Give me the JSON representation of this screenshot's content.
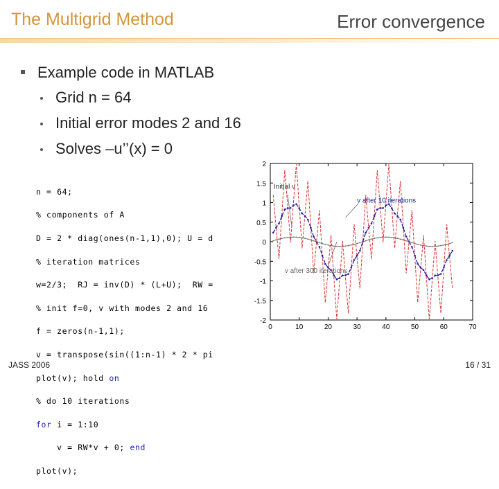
{
  "header": {
    "title": "The Multigrid Method",
    "section": "Error convergence"
  },
  "bullets": {
    "main": "Example code in MATLAB",
    "sub": [
      "Grid n = 64",
      "Initial error modes 2 and 16",
      "Solves –u’’(x) = 0"
    ]
  },
  "code_lines": [
    "n = 64;",
    "% components of A",
    "D = 2 * diag(ones(n-1,1),0); U = d",
    "% iteration matrices",
    "w=2/3;  RJ = inv(D) * (L+U);  RW =",
    "% init f=0, v with modes 2 and 16",
    "f = zeros(n-1,1);",
    "v = transpose(sin((1:n-1) * 2 * pi",
    "plot(v); hold on",
    "% do 10 iterations",
    "for i = 1:10",
    "    v = RW*v + 0; end",
    "plot(v);"
  ],
  "chart_data": {
    "type": "line",
    "xlim": [
      0,
      70
    ],
    "ylim": [
      -2,
      2
    ],
    "xticks": [
      "0",
      "10",
      "20",
      "30",
      "40",
      "50",
      "60",
      "70"
    ],
    "yticks": [
      "2",
      "1.5",
      "1",
      "0.5",
      "0",
      "-0.5",
      "-1",
      "-1.5",
      "-2"
    ],
    "grid": false,
    "series_colors": {
      "initial": "#e03030",
      "after10": "#2020a0",
      "after300": "#707070"
    },
    "annotations": [
      "Initial v",
      "v after 10 iterations",
      "v after 300 iterations"
    ],
    "series": [
      {
        "name": "Initial v",
        "formula": "sin(2*2*pi*i/64) + sin(16*2*pi*i/64)",
        "x_range": [
          1,
          63
        ]
      },
      {
        "name": "v after 10 iterations",
        "x_range": [
          1,
          63
        ]
      },
      {
        "name": "v after 300 iterations",
        "x_range": [
          1,
          63
        ]
      }
    ]
  },
  "footer": {
    "left": "JASS 2006",
    "right": "16 / 31"
  }
}
